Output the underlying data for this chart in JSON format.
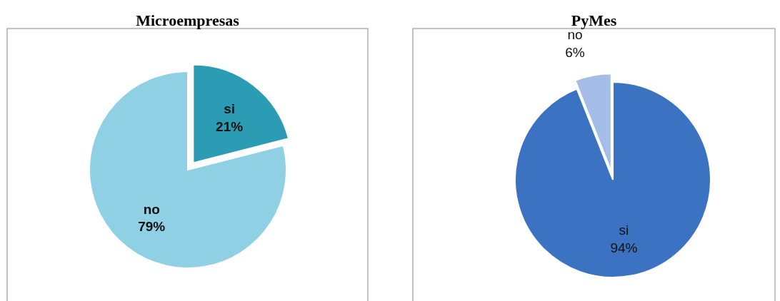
{
  "chart_data": [
    {
      "type": "pie",
      "title": "Microempresas",
      "categories": [
        "si",
        "no"
      ],
      "values": [
        21,
        79
      ],
      "colors": [
        "#2b9cb4",
        "#90d0e4"
      ],
      "value_labels": [
        "21%",
        "79%"
      ]
    },
    {
      "type": "pie",
      "title": "PyMes",
      "categories": [
        "si",
        "no"
      ],
      "values": [
        94,
        6
      ],
      "colors": [
        "#3b72c2",
        "#a3bde6"
      ],
      "value_labels": [
        "94%",
        "6%"
      ]
    }
  ]
}
